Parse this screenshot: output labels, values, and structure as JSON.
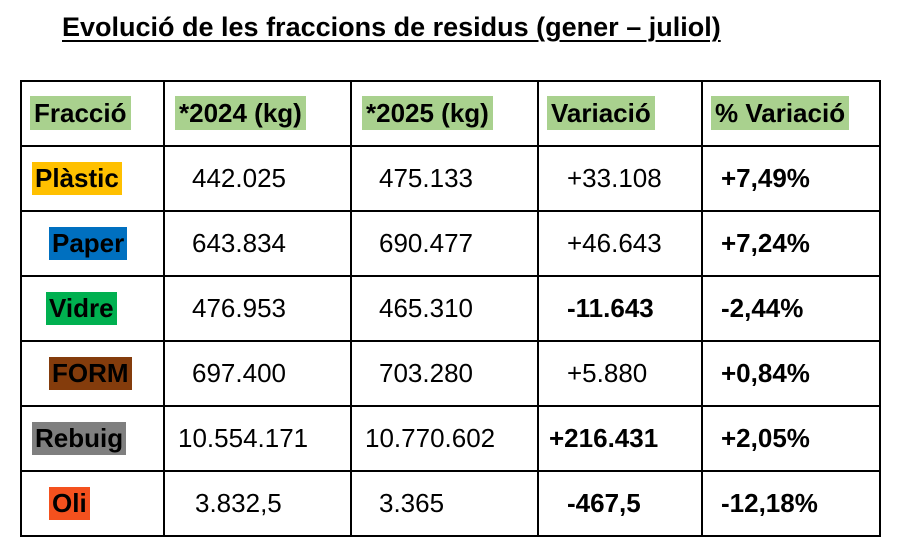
{
  "title": "Evolució de les fraccions de residus (gener – juliol)",
  "colors": {
    "header_highlight": "#a9d18e",
    "plastic": "#ffc000",
    "paper": "#0070c0",
    "glass": "#00b050",
    "organic": "#843c0c",
    "rest": "#7f7f7f",
    "oil": "#f4511e"
  },
  "table": {
    "headers": [
      "Fracció",
      "*2024 (kg)",
      "*2025 (kg)",
      "Variació",
      "% Variació"
    ],
    "rows": [
      {
        "fraction": "Plàstic",
        "y2024": "442.025",
        "y2025": "475.133",
        "variation": "+33.108",
        "pct": "+7,49%"
      },
      {
        "fraction": "Paper",
        "y2024": "643.834",
        "y2025": "690.477",
        "variation": "+46.643",
        "pct": "+7,24%"
      },
      {
        "fraction": "Vidre",
        "y2024": "476.953",
        "y2025": "465.310",
        "variation": "-11.643",
        "pct": "-2,44%"
      },
      {
        "fraction": "FORM",
        "y2024": "697.400",
        "y2025": "703.280",
        "variation": "+5.880",
        "pct": "+0,84%"
      },
      {
        "fraction": "Rebuig",
        "y2024": "10.554.171",
        "y2025": "10.770.602",
        "variation": "+216.431",
        "pct": "+2,05%"
      },
      {
        "fraction": "Oli",
        "y2024": "3.832,5",
        "y2025": "3.365",
        "variation": "-467,5",
        "pct": "-12,18%"
      }
    ]
  }
}
